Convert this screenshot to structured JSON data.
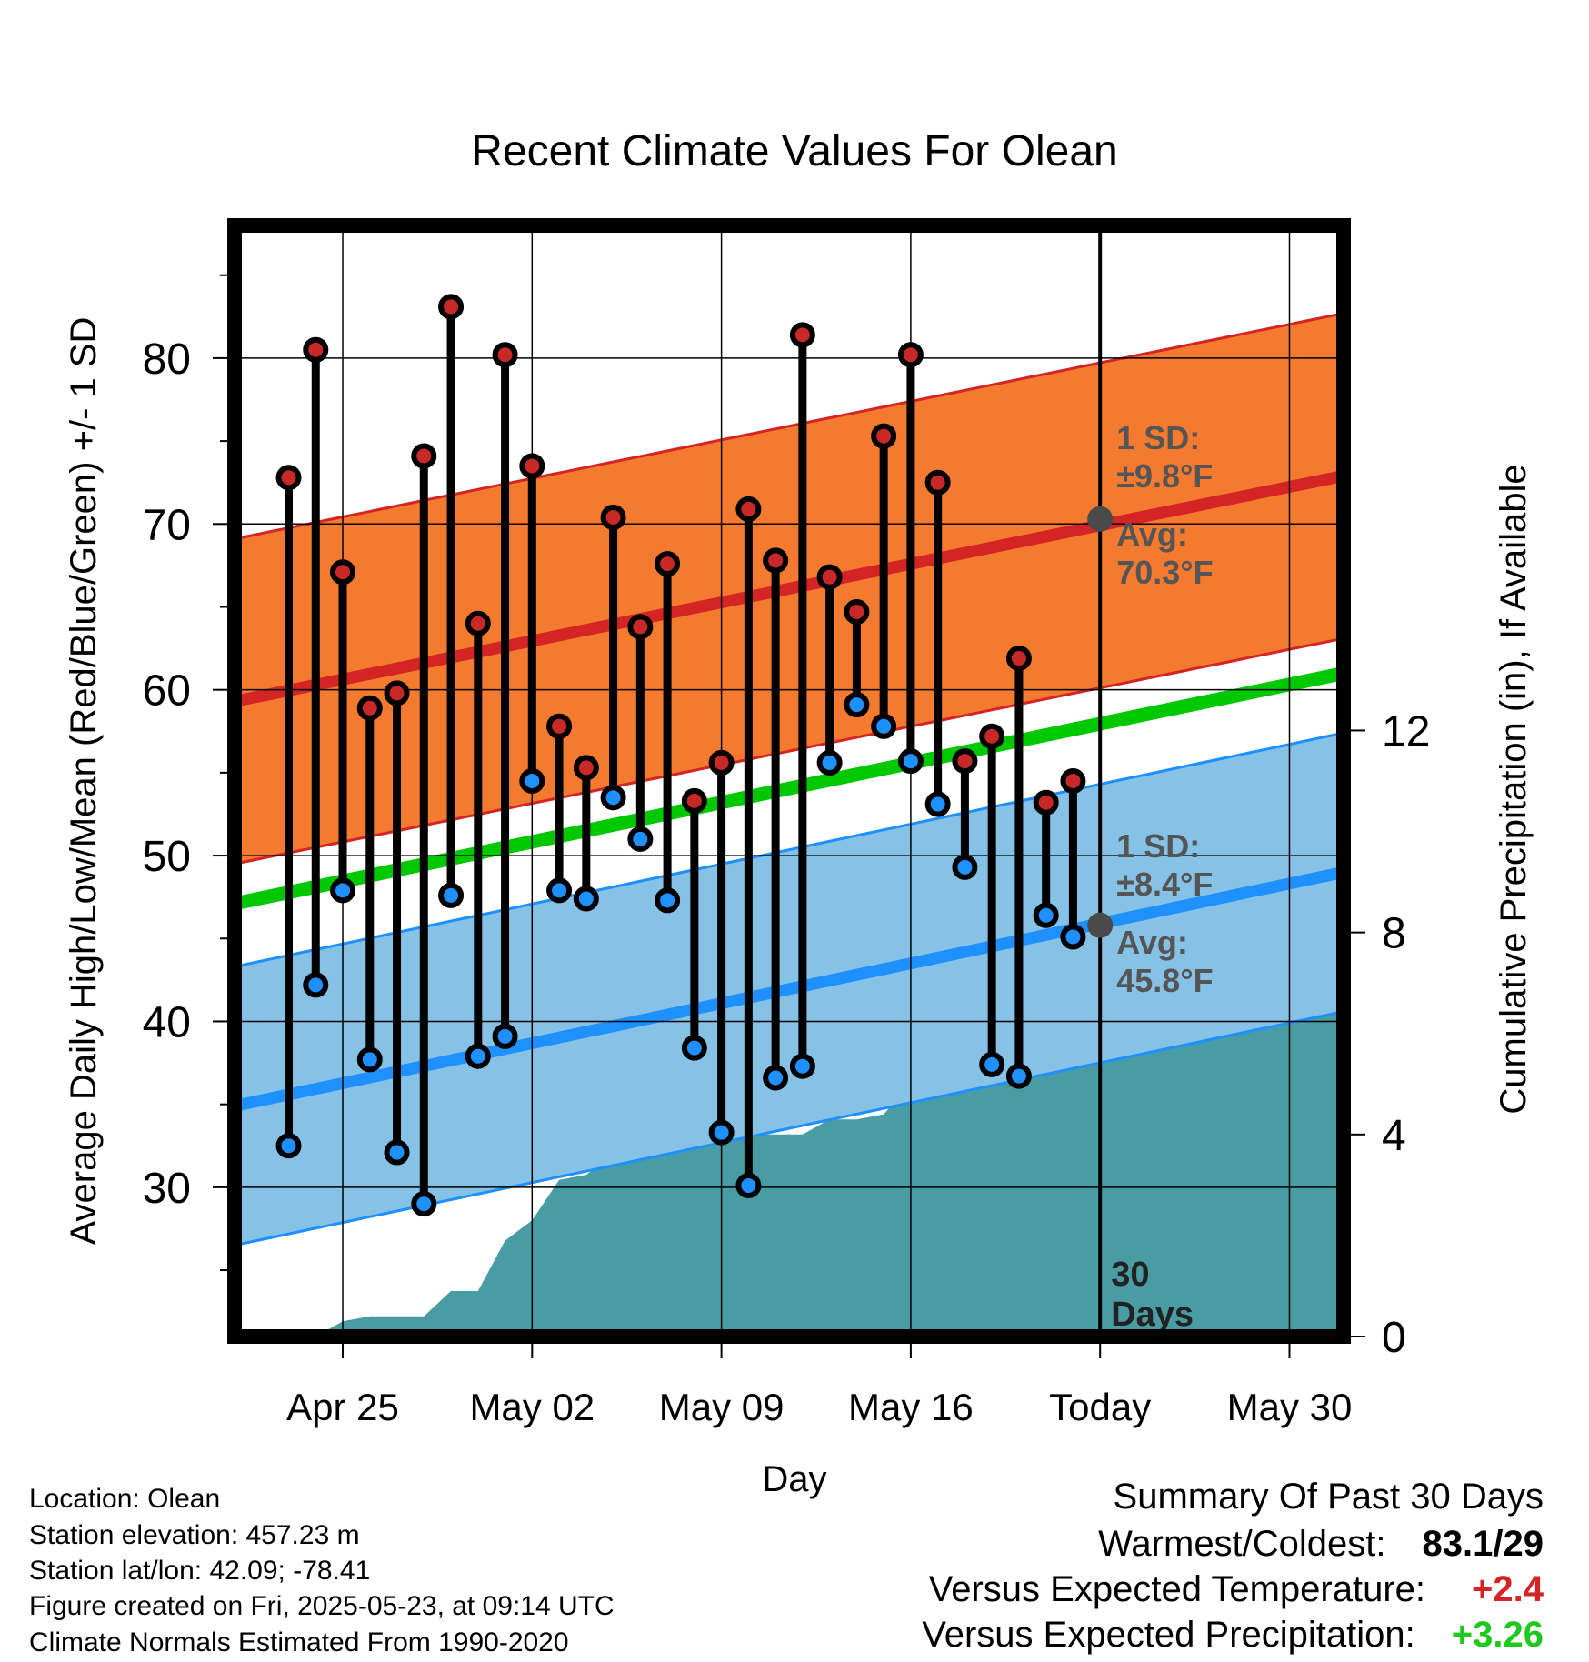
{
  "chart_data": {
    "type": "line",
    "title": "Recent Climate Values For Olean",
    "xlabel": "Day",
    "ylabel_left": "Average Daily High/Low/Mean (Red/Blue/Green) +/- 1 SD",
    "ylabel_right": "Cumulative Precipitation (in), If Available",
    "x_ticks": [
      "Apr 25",
      "May 02",
      "May 09",
      "May 16",
      "Today",
      "May 30"
    ],
    "y_left_ticks": [
      "30",
      "40",
      "50",
      "60",
      "70",
      "80"
    ],
    "y_right_ticks": [
      "0",
      "4",
      "8",
      "12"
    ],
    "x_range": [
      "2025-04-21",
      "2025-06-01"
    ],
    "y_left_range": [
      21,
      88
    ],
    "y_right_range": [
      0,
      22
    ],
    "grid": true,
    "today": "2025-05-23",
    "today_label": "30 Days",
    "daily": [
      {
        "date": "2025-04-23",
        "high": 72.8,
        "low": 32.5
      },
      {
        "date": "2025-04-24",
        "high": 80.5,
        "low": 42.2
      },
      {
        "date": "2025-04-25",
        "high": 67.1,
        "low": 47.9
      },
      {
        "date": "2025-04-26",
        "high": 58.9,
        "low": 37.7
      },
      {
        "date": "2025-04-27",
        "high": 59.8,
        "low": 32.1
      },
      {
        "date": "2025-04-28",
        "high": 74.1,
        "low": 29.0
      },
      {
        "date": "2025-04-29",
        "high": 83.1,
        "low": 47.6
      },
      {
        "date": "2025-04-30",
        "high": 64.0,
        "low": 37.9
      },
      {
        "date": "2025-05-01",
        "high": 80.2,
        "low": 39.1
      },
      {
        "date": "2025-05-02",
        "high": 73.5,
        "low": 54.5
      },
      {
        "date": "2025-05-03",
        "high": 57.8,
        "low": 47.9
      },
      {
        "date": "2025-05-04",
        "high": 55.3,
        "low": 47.4
      },
      {
        "date": "2025-05-05",
        "high": 70.4,
        "low": 53.5
      },
      {
        "date": "2025-05-06",
        "high": 63.8,
        "low": 51.0
      },
      {
        "date": "2025-05-07",
        "high": 67.6,
        "low": 47.3
      },
      {
        "date": "2025-05-08",
        "high": 53.3,
        "low": 38.4
      },
      {
        "date": "2025-05-09",
        "high": 55.6,
        "low": 33.3
      },
      {
        "date": "2025-05-10",
        "high": 70.9,
        "low": 30.1
      },
      {
        "date": "2025-05-11",
        "high": 67.8,
        "low": 36.6
      },
      {
        "date": "2025-05-12",
        "high": 81.4,
        "low": 37.3
      },
      {
        "date": "2025-05-13",
        "high": 66.8,
        "low": 55.6
      },
      {
        "date": "2025-05-14",
        "high": 64.7,
        "low": 59.1
      },
      {
        "date": "2025-05-15",
        "high": 75.3,
        "low": 57.8
      },
      {
        "date": "2025-05-16",
        "high": 80.2,
        "low": 55.7
      },
      {
        "date": "2025-05-17",
        "high": 72.5,
        "low": 53.1
      },
      {
        "date": "2025-05-18",
        "high": 55.7,
        "low": 49.3
      },
      {
        "date": "2025-05-19",
        "high": 57.2,
        "low": 37.4
      },
      {
        "date": "2025-05-20",
        "high": 61.9,
        "low": 36.7
      },
      {
        "date": "2025-05-21",
        "high": 53.2,
        "low": 46.4
      },
      {
        "date": "2025-05-22",
        "high": 54.5,
        "low": 45.1
      }
    ],
    "normal_high": {
      "start": 59.3,
      "end": 72.9,
      "sd": 9.8
    },
    "normal_low": {
      "start": 34.9,
      "end": 49.0,
      "sd": 8.4
    },
    "normal_mean": {
      "start": 47.1,
      "end": 61.0
    },
    "precip_cumulative": [
      {
        "date": "2025-04-23",
        "value": 0.0
      },
      {
        "date": "2025-04-24",
        "value": 0.0
      },
      {
        "date": "2025-04-25",
        "value": 0.3
      },
      {
        "date": "2025-04-26",
        "value": 0.4
      },
      {
        "date": "2025-04-27",
        "value": 0.4
      },
      {
        "date": "2025-04-28",
        "value": 0.4
      },
      {
        "date": "2025-04-29",
        "value": 0.9
      },
      {
        "date": "2025-04-30",
        "value": 0.9
      },
      {
        "date": "2025-05-01",
        "value": 1.9
      },
      {
        "date": "2025-05-02",
        "value": 2.3
      },
      {
        "date": "2025-05-03",
        "value": 3.1
      },
      {
        "date": "2025-05-04",
        "value": 3.2
      },
      {
        "date": "2025-05-05",
        "value": 3.6
      },
      {
        "date": "2025-05-06",
        "value": 4.0
      },
      {
        "date": "2025-05-07",
        "value": 4.0
      },
      {
        "date": "2025-05-08",
        "value": 4.0
      },
      {
        "date": "2025-05-09",
        "value": 4.0
      },
      {
        "date": "2025-05-10",
        "value": 4.0
      },
      {
        "date": "2025-05-11",
        "value": 4.0
      },
      {
        "date": "2025-05-12",
        "value": 4.0
      },
      {
        "date": "2025-05-13",
        "value": 4.3
      },
      {
        "date": "2025-05-14",
        "value": 4.3
      },
      {
        "date": "2025-05-15",
        "value": 4.4
      },
      {
        "date": "2025-05-16",
        "value": 5.0
      },
      {
        "date": "2025-05-17",
        "value": 5.2
      },
      {
        "date": "2025-05-18",
        "value": 5.2
      },
      {
        "date": "2025-05-19",
        "value": 5.2
      },
      {
        "date": "2025-05-20",
        "value": 5.2
      },
      {
        "date": "2025-05-21",
        "value": 6.3
      },
      {
        "date": "2025-05-22",
        "value": 6.6
      },
      {
        "date": "2025-05-23",
        "value": 6.6
      },
      {
        "date": "2025-06-01",
        "value": 6.6
      }
    ],
    "annotations": {
      "high_sd_label": "1 SD:",
      "high_sd_value": "±9.8°F",
      "high_avg_label": "Avg:",
      "high_avg_value": "70.3°F",
      "low_sd_label": "1 SD:",
      "low_sd_value": "±8.4°F",
      "low_avg_label": "Avg:",
      "low_avg_value": "45.8°F",
      "high_avg_point": 70.3,
      "low_avg_point": 45.8
    },
    "colors": {
      "high_band": "#f47a30",
      "high_line": "#d42424",
      "low_band": "#86c1e6",
      "low_line": "#1e90ff",
      "mean_line": "#00c800",
      "precip": "#499ba4",
      "high_dot": "#c82828",
      "low_dot": "#1e90ff",
      "annotation": "#555555"
    }
  },
  "footer": {
    "location": "Location: Olean",
    "elevation": "Station elevation: 457.23 m",
    "latlon": "Station lat/lon: 42.09; -78.41",
    "created": "Figure created on Fri, 2025-05-23, at 09:14 UTC",
    "normals": "Climate Normals Estimated From 1990-2020"
  },
  "summary": {
    "title": "Summary Of Past 30 Days",
    "warm_cold_label": "Warmest/Coldest:",
    "warm_cold_value": "83.1/29",
    "temp_label": "Versus Expected Temperature:",
    "temp_value": "+2.4",
    "temp_color": "#d42424",
    "precip_label": "Versus Expected Precipitation:",
    "precip_value": "+3.26",
    "precip_color": "#1ec81e"
  }
}
